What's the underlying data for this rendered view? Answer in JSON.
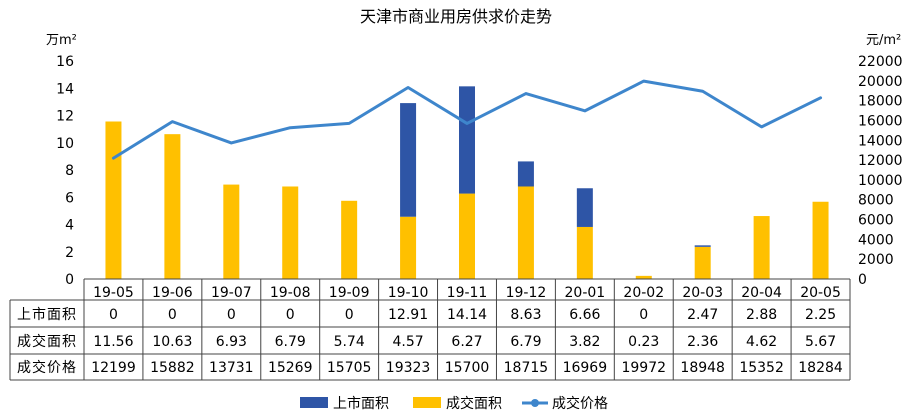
{
  "chart_data": {
    "type": "bar",
    "title": "天津市商业用房供求价走势",
    "left_unit": "万m²",
    "right_unit": "元/m²",
    "categories": [
      "19-05",
      "19-06",
      "19-07",
      "19-08",
      "19-09",
      "19-10",
      "19-11",
      "19-12",
      "20-01",
      "20-02",
      "20-03",
      "20-04",
      "20-05"
    ],
    "ylim_left": [
      0,
      16
    ],
    "yticks_left": [
      "0",
      "2",
      "4",
      "6",
      "8",
      "10",
      "12",
      "14",
      "16"
    ],
    "ylim_right": [
      0,
      22000
    ],
    "yticks_right": [
      "0",
      "2000",
      "4000",
      "6000",
      "8000",
      "10000",
      "12000",
      "14000",
      "16000",
      "18000",
      "20000",
      "22000"
    ],
    "grid": false,
    "legend_position": "bottom",
    "series": [
      {
        "name": "上市面积",
        "kind": "bar",
        "axis": "left",
        "color": "#2e55a6",
        "values": [
          0,
          0,
          0,
          0,
          0,
          12.91,
          14.14,
          8.63,
          6.66,
          0,
          2.47,
          2.88,
          2.25
        ],
        "labels": [
          "0",
          "0",
          "0",
          "0",
          "0",
          "12.91",
          "14.14",
          "8.63",
          "6.66",
          "0",
          "2.47",
          "2.88",
          "2.25"
        ]
      },
      {
        "name": "成交面积",
        "kind": "bar",
        "axis": "left",
        "color": "#ffc000",
        "values": [
          11.56,
          10.63,
          6.93,
          6.79,
          5.74,
          4.57,
          6.27,
          6.79,
          3.82,
          0.23,
          2.36,
          4.62,
          5.67
        ],
        "labels": [
          "11.56",
          "10.63",
          "6.93",
          "6.79",
          "5.74",
          "4.57",
          "6.27",
          "6.79",
          "3.82",
          "0.23",
          "2.36",
          "4.62",
          "5.67"
        ]
      },
      {
        "name": "成交价格",
        "kind": "line",
        "axis": "right",
        "color": "#3e86cc",
        "values": [
          12199,
          15882,
          13731,
          15269,
          15705,
          19323,
          15700,
          18715,
          16969,
          19972,
          18948,
          15352,
          18284
        ],
        "labels": [
          "12199",
          "15882",
          "13731",
          "15269",
          "15705",
          "19323",
          "15700",
          "18715",
          "16969",
          "19972",
          "18948",
          "15352",
          "18284"
        ]
      }
    ]
  }
}
